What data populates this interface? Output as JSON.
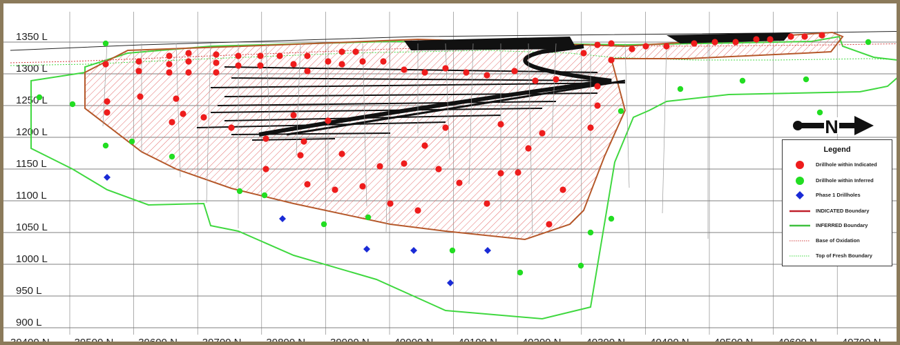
{
  "levels": [
    "1350 L",
    "1300 L",
    "1250 L",
    "1200 L",
    "1150 L",
    "1100 L",
    "1050 L",
    "1000 L",
    "950 L",
    "900 L"
  ],
  "northings": [
    "39400 N",
    "39500 N",
    "39600 N",
    "39700 N",
    "39800 N",
    "39900 N",
    "40000 N",
    "40100 N",
    "40200 N",
    "40300 N",
    "40400 N",
    "40500 N",
    "40600 N",
    "40700 N"
  ],
  "north_arrow": {
    "letter": "N"
  },
  "legend": {
    "title": "Legend",
    "items": [
      {
        "label": "Drillhole within Indicated",
        "symbol": "red-dot-icon"
      },
      {
        "label": "Drillhole within Inferred",
        "symbol": "green-dot-icon"
      },
      {
        "label": "Phase 1 Drillholes",
        "symbol": "blue-diamond-icon"
      },
      {
        "label": "INDICATED Boundary",
        "symbol": "red-line-icon"
      },
      {
        "label": "INFERRED Boundary",
        "symbol": "green-line-icon"
      },
      {
        "label": "Base of Oxidation",
        "symbol": "red-dotted-line-icon"
      },
      {
        "label": "Top of Fresh Boundary",
        "symbol": "green-dotted-line-icon"
      }
    ]
  },
  "colors": {
    "indicated": "#b5582a",
    "inferred": "#3fd83f",
    "indicated_hole": "#ee1c1c",
    "inferred_hole": "#22dd22",
    "phase1": "#1a2bd6",
    "frame": "#8b7a5a",
    "grid": "#444444"
  }
}
